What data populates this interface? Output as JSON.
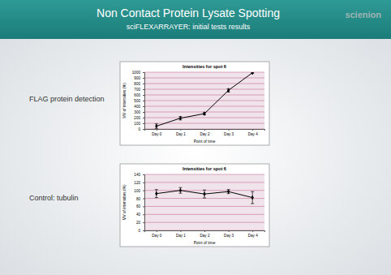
{
  "slide": {
    "title": "Non Contact Protein Lysate Spotting",
    "subtitle": "sciFLEXARRAYER: initial tests results",
    "logo": "scienion",
    "labels": [
      "FLAG protein detection",
      "Control: tubulin"
    ]
  },
  "chart_data": [
    {
      "type": "line",
      "title": "Intensities for spot 6",
      "x_label": "Point of time",
      "y_label": "MV of intensities (%)",
      "categories": [
        "Day 0",
        "Day 1",
        "Day 2",
        "Day 3",
        "Day 4"
      ],
      "values": [
        50,
        190,
        270,
        680,
        990
      ],
      "errors": [
        40,
        30,
        20,
        30,
        10
      ],
      "color": "#000000",
      "marker": "diamond",
      "line_style": "solid",
      "ylim": [
        0,
        1000
      ],
      "yticks": [
        0,
        100,
        200,
        300,
        400,
        500,
        600,
        700,
        800,
        900,
        1000
      ],
      "grid": true
    },
    {
      "type": "line",
      "title": "Intensities for spot 6",
      "x_label": "Point of time",
      "y_label": "MV of intensities (%)",
      "categories": [
        "Day 0",
        "Day 1",
        "Day 2",
        "Day 3",
        "Day 4"
      ],
      "values": [
        92,
        100,
        91,
        97,
        82
      ],
      "errors": [
        10,
        7,
        10,
        5,
        15
      ],
      "color": "#000000",
      "marker": "diamond",
      "line_style": "solid",
      "ylim": [
        0,
        140
      ],
      "yticks": [
        0,
        20,
        40,
        60,
        80,
        100,
        120,
        140
      ],
      "grid": true
    }
  ]
}
